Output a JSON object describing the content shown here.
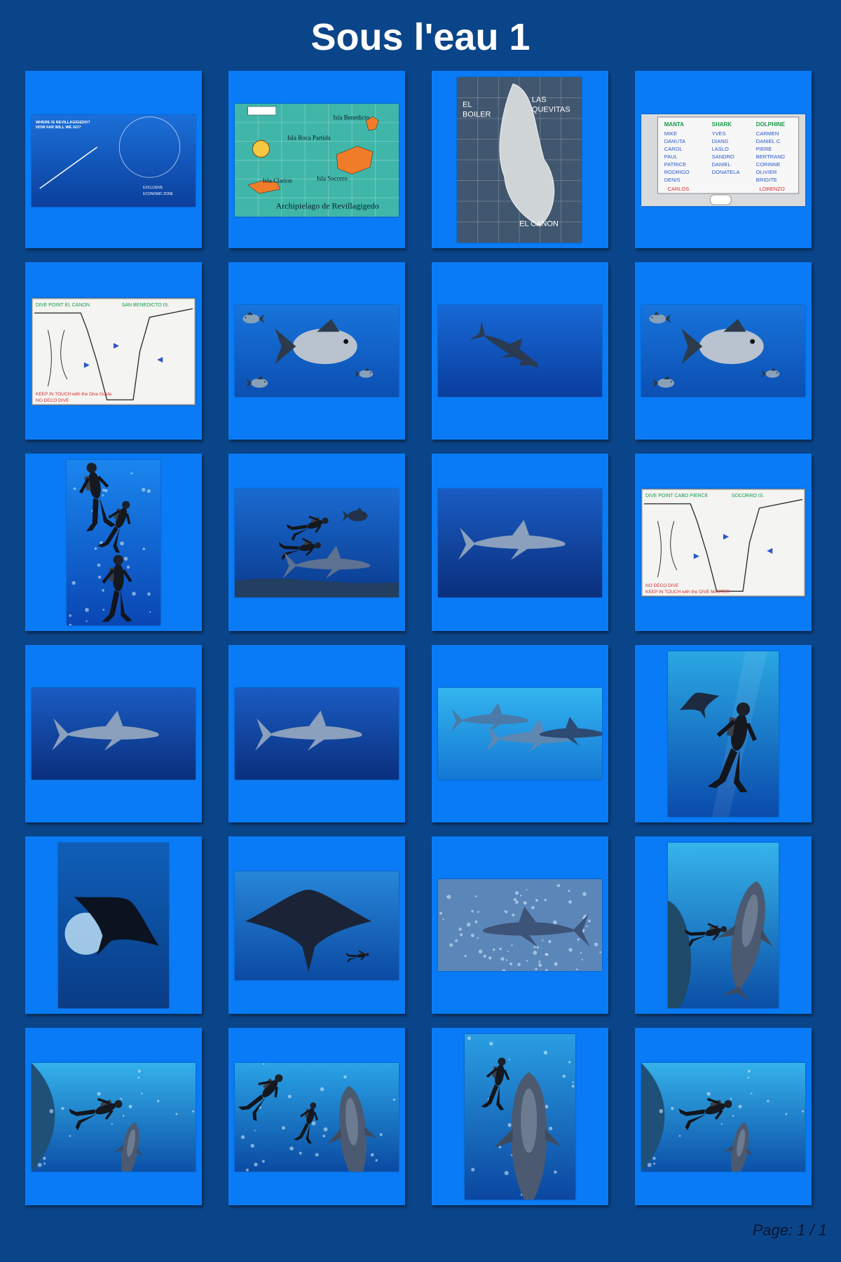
{
  "page": {
    "title": "Sous l'eau 1",
    "footer": "Page: 1 / 1"
  },
  "thumbnails": [
    {
      "kind": "map-info",
      "name": "revillagigedo-info-map",
      "text": [
        "WHERE IS REVILLAGIGEDO?",
        "HOW FAR WILL WE GO?",
        "EXCLUSIVE",
        "ECONOMIC ZONE"
      ]
    },
    {
      "kind": "island-map",
      "name": "archipelago-map",
      "text": [
        "Isla Benedicto",
        "Isla Roca Partida",
        "Isla Socorro",
        "Isla Clarion",
        "Archipielago de Revillagigedo"
      ]
    },
    {
      "kind": "satellite-map",
      "name": "san-benedicto-satellite",
      "text": [
        "EL",
        "BOILER",
        "LAS",
        "QUEVITAS",
        "EL CANON"
      ]
    },
    {
      "kind": "whiteboard-teams",
      "name": "dive-teams-whiteboard",
      "text": [
        "MANTA",
        "SHARK",
        "DOLPHINE"
      ],
      "columns": [
        [
          "MIKE",
          "DANUTA",
          "CAROL",
          "PAUL",
          "PATRICE",
          "RODRIGO",
          "DENIS"
        ],
        [
          "YVES",
          "DIANG",
          "LASLO",
          "SANDRO",
          "DANIEL",
          "DONATELA"
        ],
        [
          "CARMEN",
          "DANIEL C.",
          "PIERE",
          "BERTRAND",
          "CORINNE",
          "OLIVIER",
          "BRIGITE"
        ]
      ],
      "footer": [
        "CARLOS",
        "LORENZO"
      ]
    },
    {
      "kind": "whiteboard-site",
      "name": "dive-point-el-canon-whiteboard",
      "text": [
        "DIVE POINT EL CANON",
        "SAN BENEDICTO IS.",
        "KEEP IN TOUCH with the Dive Guide",
        "NO DECO DIVE"
      ]
    },
    {
      "kind": "fish",
      "name": "trevally-photo"
    },
    {
      "kind": "hammerhead",
      "name": "hammerhead-shark-photo"
    },
    {
      "kind": "fish",
      "name": "jack-fish-photo"
    },
    {
      "kind": "divers-vertical",
      "name": "divers-ascending-photo"
    },
    {
      "kind": "divers-sharks",
      "name": "divers-with-sharks-photo"
    },
    {
      "kind": "shark",
      "name": "silky-shark-photo"
    },
    {
      "kind": "whiteboard-site",
      "name": "dive-point-cabo-pierce-whiteboard",
      "text": [
        "DIVE POINT CABO PIERCE",
        "SOCORRO IS.",
        "NO DECO DIVE",
        "KEEP IN TOUCH with the DIVE MASTER"
      ]
    },
    {
      "kind": "shark",
      "name": "shark-dark-water-photo"
    },
    {
      "kind": "shark",
      "name": "shark-swimming-photo"
    },
    {
      "kind": "sharks-light",
      "name": "sharks-group-photo"
    },
    {
      "kind": "manta-diver",
      "name": "manta-and-diver-photo"
    },
    {
      "kind": "manta-silhouette",
      "name": "manta-silhouette-photo"
    },
    {
      "kind": "manta-wide",
      "name": "giant-manta-photo"
    },
    {
      "kind": "reef-shark",
      "name": "whitetip-reef-shark-photo"
    },
    {
      "kind": "dolphin-diver",
      "name": "dolphin-and-diver-photo"
    },
    {
      "kind": "dolphin-diver-wide",
      "name": "diver-touching-dolphin-photo"
    },
    {
      "kind": "dolphin-divers",
      "name": "divers-and-dolphin-photo"
    },
    {
      "kind": "dolphin-face",
      "name": "dolphin-closeup-photo"
    },
    {
      "kind": "dolphin-diver-wide",
      "name": "diver-with-dolphin-photo"
    }
  ]
}
